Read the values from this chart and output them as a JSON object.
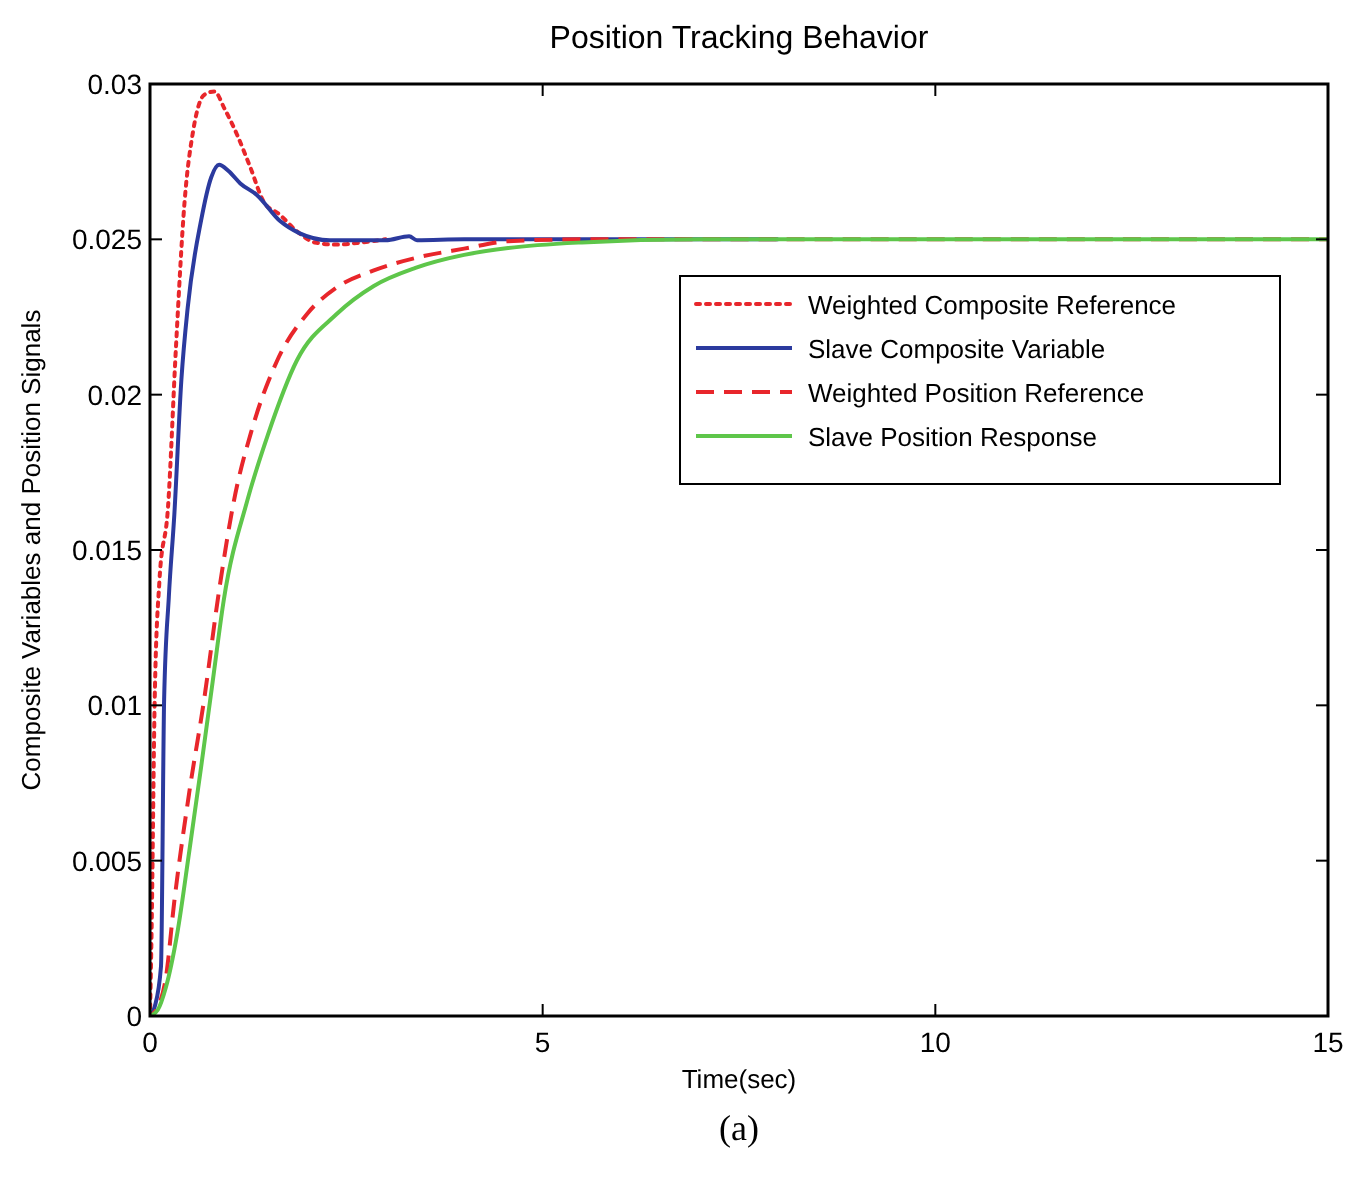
{
  "chart_data": {
    "type": "line",
    "title": "Position Tracking Behavior",
    "xlabel": "Time(sec)",
    "ylabel": "Composite Variables and Position Signals",
    "annotations": [
      "(a)"
    ],
    "xlim": [
      0,
      15
    ],
    "ylim": [
      0,
      0.03
    ],
    "xticks": [
      0,
      5,
      10,
      15
    ],
    "yticks": [
      0,
      0.005,
      0.01,
      0.015,
      0.02,
      0.025,
      0.03
    ],
    "grid": false,
    "legend": "top right",
    "series": [
      {
        "name": "Weighted Composite Reference",
        "color": "#e8262b",
        "line_style": "dotted",
        "x": [
          0,
          0.02,
          0.06,
          0.12,
          0.23,
          0.33,
          0.44,
          0.55,
          0.69,
          0.82,
          0.95,
          1.11,
          1.28,
          1.45,
          1.65,
          1.87,
          2.1,
          2.37,
          2.7,
          3
        ],
        "values": [
          0,
          0.0027,
          0.0102,
          0.014,
          0.0164,
          0.0215,
          0.0262,
          0.0285,
          0.02965,
          0.02976,
          0.0292,
          0.02836,
          0.0273,
          0.0262,
          0.0258,
          0.02526,
          0.0249,
          0.02483,
          0.0249,
          0.025
        ]
      },
      {
        "name": "Slave Composite Variable",
        "color": "#2b3a9e",
        "line_style": "solid",
        "x": [
          0,
          0.06,
          0.14,
          0.18,
          0.24,
          0.31,
          0.4,
          0.48,
          0.65,
          0.78,
          0.88,
          1,
          1.15,
          1.36,
          1.66,
          1.9,
          2.29,
          3,
          3.3,
          3.4,
          4,
          6,
          8
        ],
        "values": [
          0,
          0.0003,
          0.0016,
          0.0102,
          0.0135,
          0.01615,
          0.0205,
          0.0228,
          0.0256,
          0.027,
          0.0274,
          0.0272,
          0.0268,
          0.02643,
          0.02558,
          0.0252,
          0.02497,
          0.02497,
          0.0251,
          0.02497,
          0.025,
          0.025,
          0.025
        ]
      },
      {
        "name": "Weighted Position Reference",
        "color": "#e8262b",
        "line_style": "dashed",
        "x": [
          0,
          0.12,
          0.2,
          0.31,
          0.5,
          0.69,
          0.88,
          1.07,
          1.3,
          1.62,
          2,
          2.37,
          2.85,
          3.38,
          4,
          4.56,
          5.5,
          7,
          10,
          15
        ],
        "values": [
          0,
          0.0004,
          0.0012,
          0.0037,
          0.0072,
          0.0102,
          0.0137,
          0.0166,
          0.0189,
          0.0211,
          0.0226,
          0.02344,
          0.024,
          0.0244,
          0.0247,
          0.02494,
          0.025,
          0.025,
          0.025,
          0.025
        ]
      },
      {
        "name": "Slave Position Response",
        "color": "#5ec64a",
        "line_style": "solid",
        "x": [
          0,
          0.1,
          0.2,
          0.35,
          0.5,
          0.65,
          0.8,
          0.94,
          1.24,
          1.5,
          1.87,
          2.37,
          2.85,
          3.38,
          4,
          4.56,
          5.5,
          7,
          10,
          15
        ],
        "values": [
          0,
          0.0002,
          0.0009,
          0.0027,
          0.0053,
          0.008,
          0.0108,
          0.0134,
          0.0166,
          0.0187,
          0.0211,
          0.02258,
          0.0235,
          0.02408,
          0.0245,
          0.02472,
          0.0249,
          0.025,
          0.025,
          0.025
        ]
      }
    ]
  }
}
